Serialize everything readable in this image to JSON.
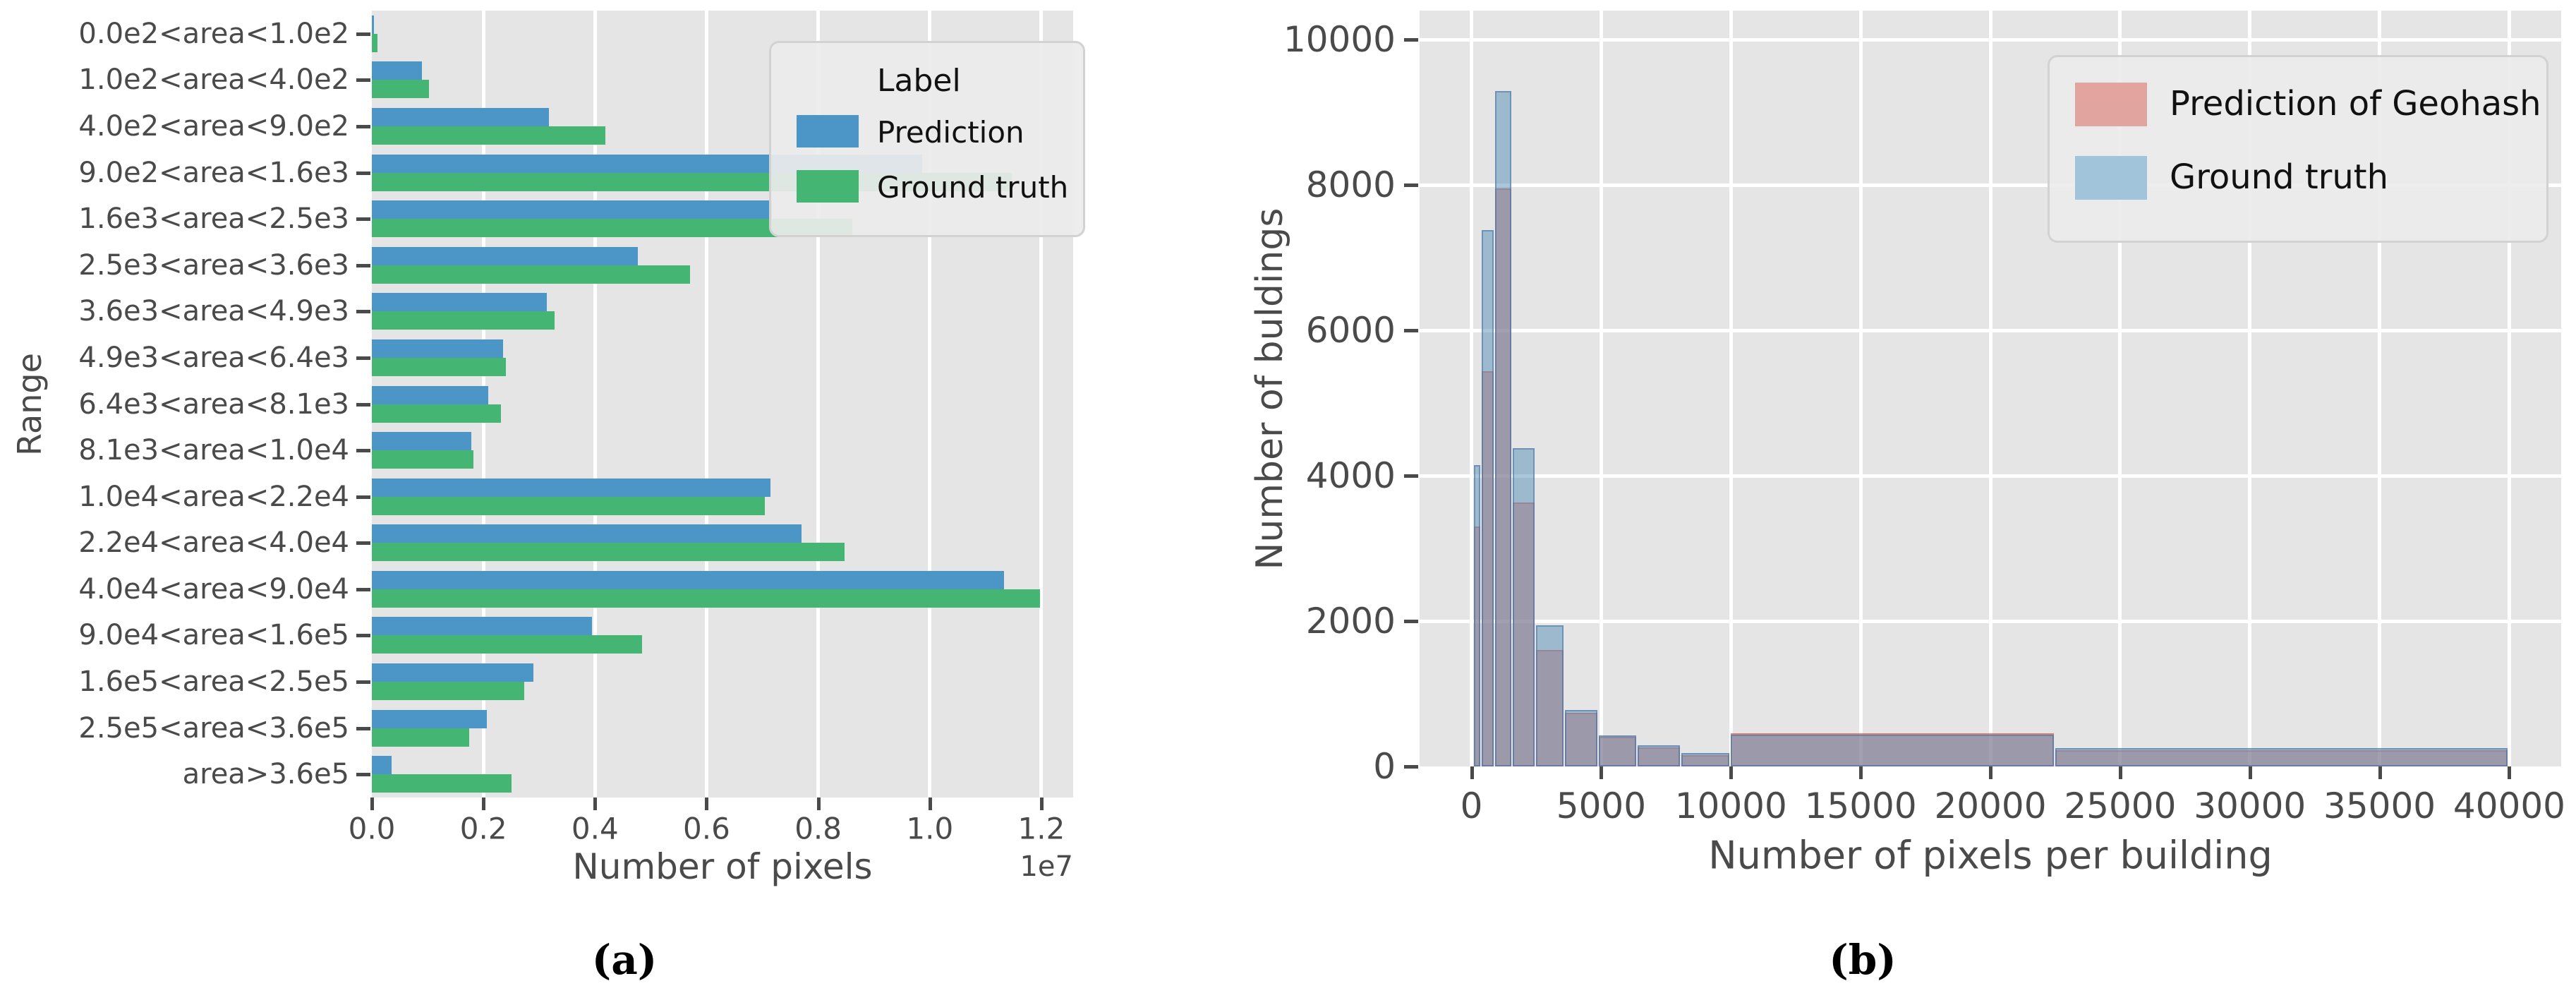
{
  "figure": {
    "captions": {
      "a": "(a)",
      "b": "(b)"
    }
  },
  "chart_data": [
    {
      "id": "a",
      "type": "bar",
      "orientation": "horizontal",
      "xlabel": "Number of pixels",
      "ylabel": "Range",
      "x_offset_label": "1e7",
      "xlim": [
        0,
        12570000
      ],
      "xticks": [
        0,
        2000000,
        4000000,
        6000000,
        8000000,
        10000000,
        12000000
      ],
      "xtick_labels": [
        "0.0",
        "0.2",
        "0.4",
        "0.6",
        "0.8",
        "1.0",
        "1.2"
      ],
      "grid": "vertical-only",
      "legend": {
        "title": "Label",
        "position": "upper right"
      },
      "categories": [
        "0.0e2<area<1.0e2",
        "1.0e2<area<4.0e2",
        "4.0e2<area<9.0e2",
        "9.0e2<area<1.6e3",
        "1.6e3<area<2.5e3",
        "2.5e3<area<3.6e3",
        "3.6e3<area<4.9e3",
        "4.9e3<area<6.4e3",
        "6.4e3<area<8.1e3",
        "8.1e3<area<1.0e4",
        "1.0e4<area<2.2e4",
        "2.2e4<area<4.0e4",
        "4.0e4<area<9.0e4",
        "9.0e4<area<1.6e5",
        "1.6e5<area<2.5e5",
        "2.5e5<area<3.6e5",
        "area>3.6e5"
      ],
      "series": [
        {
          "name": "Prediction",
          "color": "#4B96C7",
          "values": [
            40000,
            900000,
            3170000,
            9870000,
            7170000,
            4770000,
            3140000,
            2350000,
            2090000,
            1780000,
            7140000,
            7700000,
            11330000,
            3950000,
            2890000,
            2060000,
            350000
          ]
        },
        {
          "name": "Ground truth",
          "color": "#45B574",
          "values": [
            100000,
            1030000,
            4190000,
            11470000,
            8610000,
            5700000,
            3280000,
            2400000,
            2310000,
            1820000,
            7050000,
            8470000,
            11980000,
            4840000,
            2730000,
            1750000,
            2510000
          ]
        }
      ]
    },
    {
      "id": "b",
      "type": "histogram",
      "xlabel": "Number of pixels per building",
      "ylabel": "Number of buldings",
      "xlim": [
        -2000,
        42000
      ],
      "ylim": [
        0,
        10400
      ],
      "xticks": [
        0,
        5000,
        10000,
        15000,
        20000,
        25000,
        30000,
        35000,
        40000
      ],
      "xtick_labels": [
        "0",
        "5000",
        "10000",
        "15000",
        "20000",
        "25000",
        "30000",
        "35000",
        "40000"
      ],
      "yticks": [
        0,
        2000,
        4000,
        6000,
        8000,
        10000
      ],
      "ytick_labels": [
        "0",
        "2000",
        "4000",
        "6000",
        "8000",
        "10000"
      ],
      "grid": "both",
      "legend": {
        "title": null,
        "position": "upper right"
      },
      "bin_edges": [
        100,
        400,
        900,
        1600,
        2500,
        3600,
        4900,
        6400,
        8100,
        10000,
        22500,
        40000
      ],
      "series": [
        {
          "name": "Prediction of Geohash",
          "legend_color": "#E2A49E",
          "fill": "rgba(223,99,87,0.50)",
          "edge": "rgba(205,95,85,0.55)",
          "values": [
            3300,
            5440,
            7950,
            3630,
            1600,
            740,
            405,
            260,
            160,
            455,
            225
          ]
        },
        {
          "name": "Ground truth",
          "legend_color": "#A1C4DA",
          "fill": "rgba(86,142,184,0.50)",
          "edge": "rgba(75,120,170,0.60)",
          "values": [
            4150,
            7380,
            9290,
            4380,
            1940,
            780,
            425,
            290,
            180,
            435,
            250
          ]
        }
      ]
    }
  ]
}
